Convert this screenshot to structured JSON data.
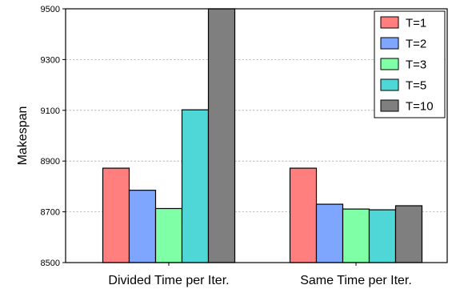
{
  "chart_data": {
    "type": "bar",
    "title": "",
    "xlabel": "",
    "ylabel": "Makespan",
    "ylim": [
      8500,
      9500
    ],
    "yticks": [
      8500,
      8700,
      8900,
      9100,
      9300,
      9500
    ],
    "grid": "horizontal dashed",
    "legend_position": "top-right",
    "categories": [
      "Divided Time per Iter.",
      "Same Time per Iter."
    ],
    "series": [
      {
        "name": "T=1",
        "color": "#ff7f7f",
        "values": [
          8872,
          8872
        ]
      },
      {
        "name": "T=2",
        "color": "#7fa6ff",
        "values": [
          8785,
          8730
        ]
      },
      {
        "name": "T=3",
        "color": "#7fffa6",
        "values": [
          8713,
          8711
        ]
      },
      {
        "name": "T=5",
        "color": "#4fd6d6",
        "values": [
          9102,
          8708
        ]
      },
      {
        "name": "T=10",
        "color": "#7f7f7f",
        "values": [
          9500,
          8724
        ]
      }
    ]
  }
}
